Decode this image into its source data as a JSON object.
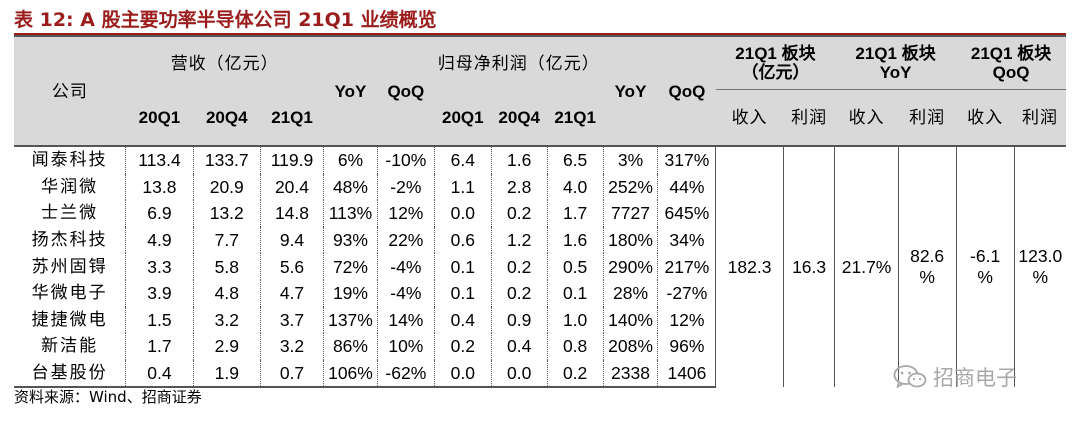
{
  "title": "表 12:  A 股主要功率半导体公司 21Q1 业绩概览",
  "header": {
    "company": "公司",
    "revenue_group": "营收（亿元）",
    "profit_group": "归母净利润（亿元）",
    "yoy": "YoY",
    "qoq": "QoQ",
    "periods": [
      "20Q1",
      "20Q4",
      "21Q1"
    ],
    "sector_size_title": "21Q1 板块（亿元）",
    "sector_yoy_title": "21Q1 板块 YoY",
    "sector_qoq_title": "21Q1 板块 QoQ",
    "sub_revenue": "收入",
    "sub_profit": "利润"
  },
  "rows": [
    {
      "company": "闻泰科技",
      "rev": [
        "113.4",
        "133.7",
        "119.9"
      ],
      "rev_yoy": "6%",
      "rev_qoq": "-10%",
      "np": [
        "6.4",
        "1.6",
        "6.5"
      ],
      "np_yoy": "3%",
      "np_qoq": "317%"
    },
    {
      "company": "华润微",
      "rev": [
        "13.8",
        "20.9",
        "20.4"
      ],
      "rev_yoy": "48%",
      "rev_qoq": "-2%",
      "np": [
        "1.1",
        "2.8",
        "4.0"
      ],
      "np_yoy": "252%",
      "np_qoq": "44%"
    },
    {
      "company": "士兰微",
      "rev": [
        "6.9",
        "13.2",
        "14.8"
      ],
      "rev_yoy": "113%",
      "rev_qoq": "12%",
      "np": [
        "0.0",
        "0.2",
        "1.7"
      ],
      "np_yoy": "7727",
      "np_qoq": "645%"
    },
    {
      "company": "扬杰科技",
      "rev": [
        "4.9",
        "7.7",
        "9.4"
      ],
      "rev_yoy": "93%",
      "rev_qoq": "22%",
      "np": [
        "0.6",
        "1.2",
        "1.6"
      ],
      "np_yoy": "180%",
      "np_qoq": "34%"
    },
    {
      "company": "苏州固锝",
      "rev": [
        "3.3",
        "5.8",
        "5.6"
      ],
      "rev_yoy": "72%",
      "rev_qoq": "-4%",
      "np": [
        "0.1",
        "0.2",
        "0.5"
      ],
      "np_yoy": "290%",
      "np_qoq": "217%"
    },
    {
      "company": "华微电子",
      "rev": [
        "3.9",
        "4.8",
        "4.7"
      ],
      "rev_yoy": "19%",
      "rev_qoq": "-4%",
      "np": [
        "0.1",
        "0.2",
        "0.1"
      ],
      "np_yoy": "28%",
      "np_qoq": "-27%"
    },
    {
      "company": "捷捷微电",
      "rev": [
        "1.5",
        "3.2",
        "3.7"
      ],
      "rev_yoy": "137%",
      "rev_qoq": "14%",
      "np": [
        "0.4",
        "0.9",
        "1.0"
      ],
      "np_yoy": "140%",
      "np_qoq": "12%"
    },
    {
      "company": "新洁能",
      "rev": [
        "1.7",
        "2.9",
        "3.2"
      ],
      "rev_yoy": "86%",
      "rev_qoq": "10%",
      "np": [
        "0.2",
        "0.4",
        "0.8"
      ],
      "np_yoy": "208%",
      "np_qoq": "96%"
    },
    {
      "company": "台基股份",
      "rev": [
        "0.4",
        "1.9",
        "0.7"
      ],
      "rev_yoy": "106%",
      "rev_qoq": "-62%",
      "np": [
        "0.0",
        "0.0",
        "0.2"
      ],
      "np_yoy": "2338",
      "np_qoq": "1406"
    }
  ],
  "sector": {
    "revenue": "182.3",
    "profit": "16.3",
    "revenue_yoy": "21.7%",
    "profit_yoy_value": "82.6",
    "profit_yoy_unit": "%",
    "revenue_qoq_value": "-6.1",
    "revenue_qoq_unit": "%",
    "profit_qoq_value": "123.0",
    "profit_qoq_unit": "%"
  },
  "source": "资料来源：Wind、招商证券",
  "watermark": "招商电子",
  "watermark_icon": "wechat-icon",
  "colors": {
    "title": "#9b1c1c",
    "header_bg": "#d9d9d9",
    "watermark": "#a8a8a8"
  }
}
